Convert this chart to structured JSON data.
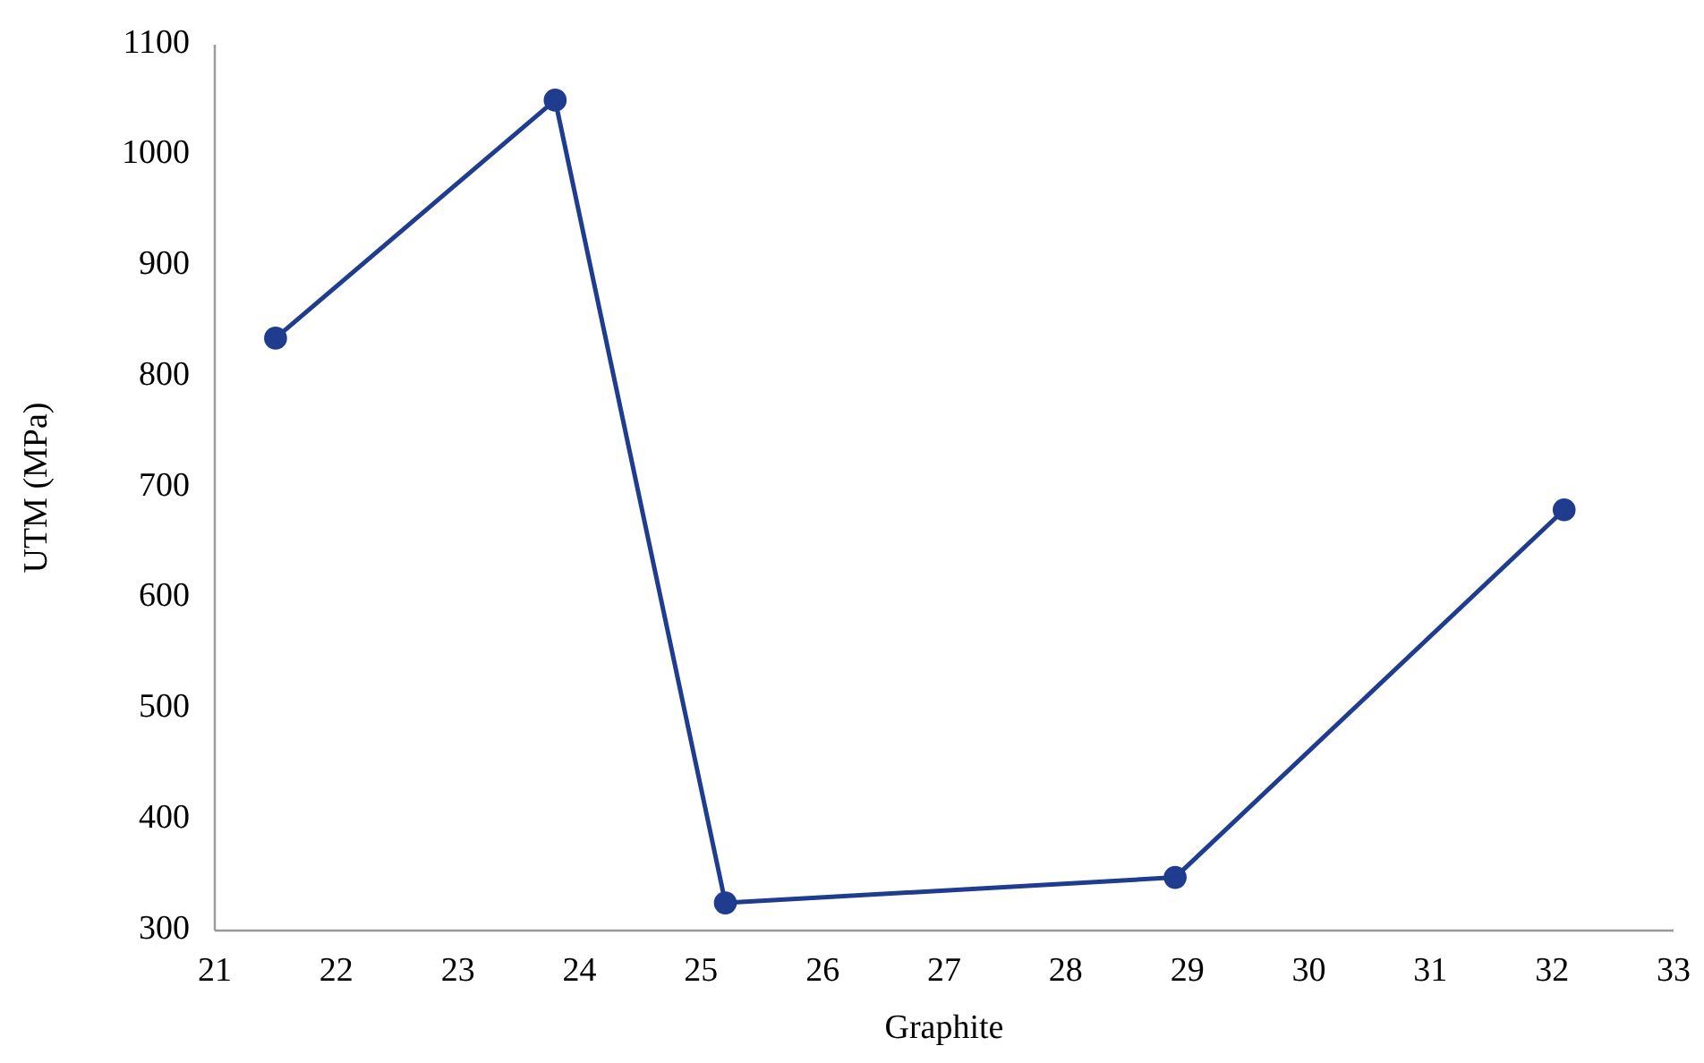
{
  "chart_data": {
    "type": "line",
    "xlabel": "Graphite",
    "ylabel": "UTM (MPa)",
    "xlim": [
      21,
      33
    ],
    "xticks": [
      21,
      22,
      23,
      24,
      25,
      26,
      27,
      28,
      29,
      30,
      31,
      32,
      33
    ],
    "ylim": [
      300,
      1100
    ],
    "yticks": [
      300,
      400,
      500,
      600,
      700,
      800,
      900,
      1000,
      1100
    ],
    "grid": false,
    "marker": "circle",
    "line_style": "solid",
    "series": [
      {
        "color": "#1f3c8f",
        "x": [
          21.5,
          23.8,
          25.2,
          28.9,
          32.1
        ],
        "values": [
          835,
          1050,
          325,
          348,
          680
        ]
      }
    ]
  }
}
